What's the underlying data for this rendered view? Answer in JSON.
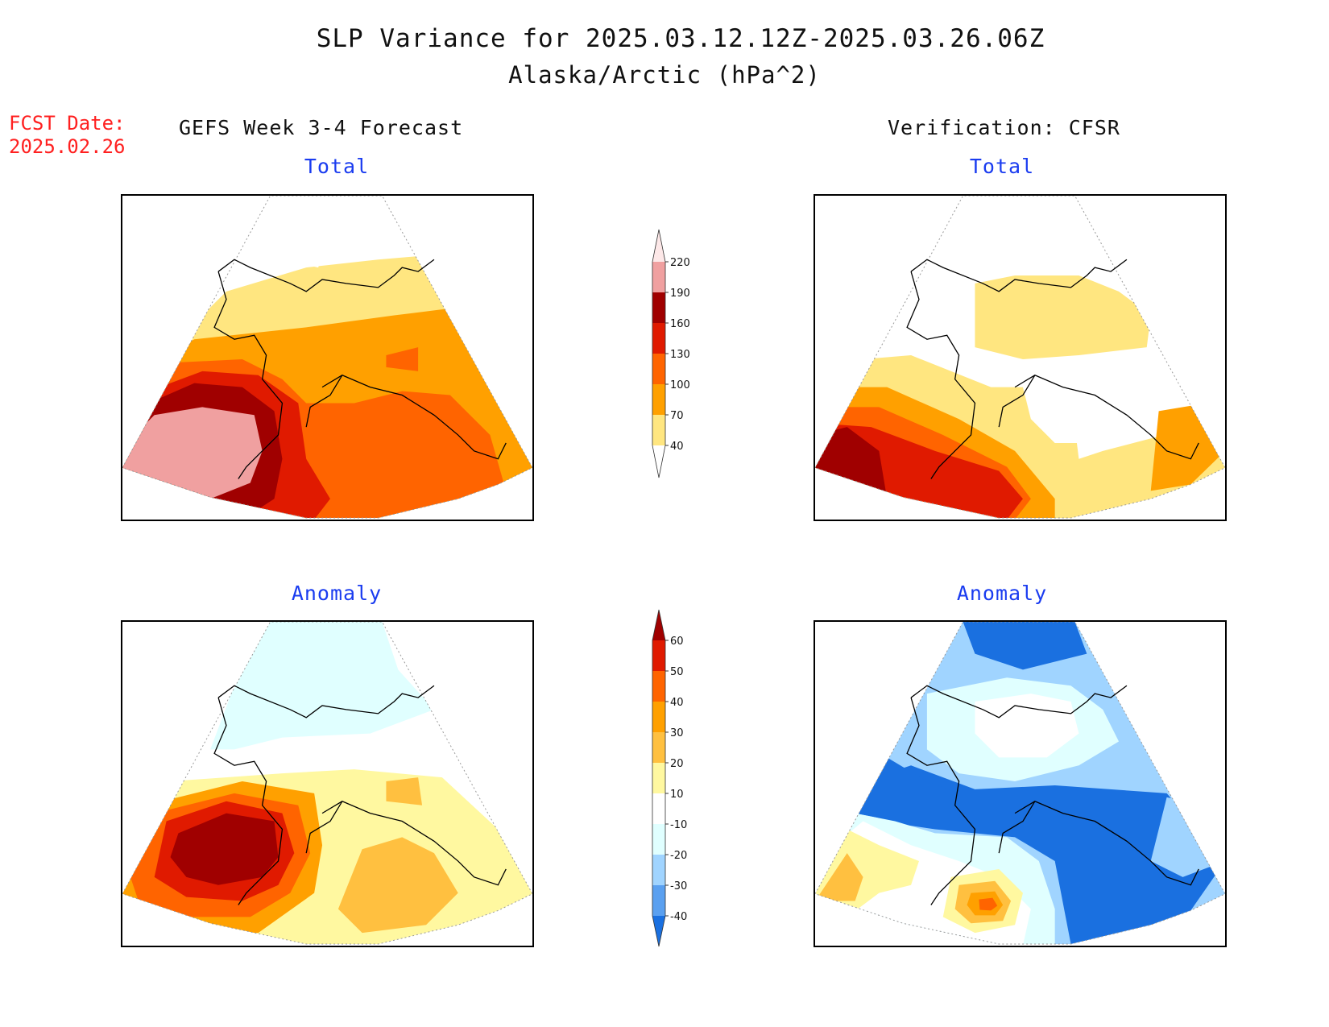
{
  "title": {
    "line1": "SLP Variance for 2025.03.12.12Z-2025.03.26.06Z",
    "line2": "Alaska/Arctic (hPa^2)"
  },
  "forecast": {
    "label": "FCST Date:",
    "date": "2025.02.26"
  },
  "columns": {
    "left_header": "GEFS Week 3-4 Forecast",
    "right_header": "Verification: CFSR"
  },
  "panels": {
    "gefs_total_title": "Total",
    "gefs_anomaly_title": "Anomaly",
    "cfsr_total_title": "Total",
    "cfsr_anomaly_title": "Anomaly"
  },
  "colorbars": {
    "total": {
      "labels": [
        "220",
        "190",
        "160",
        "130",
        "100",
        "70",
        "40"
      ],
      "colors": [
        "#fde8e8",
        "#f0a0a0",
        "#a00000",
        "#e01a00",
        "#ff6400",
        "#ffa000",
        "#ffe680"
      ]
    },
    "anomaly": {
      "labels": [
        "60",
        "50",
        "40",
        "30",
        "20",
        "10",
        "-10",
        "-20",
        "-30",
        "-40"
      ],
      "colors": [
        "#a00000",
        "#e01a00",
        "#ff6400",
        "#ffa000",
        "#ffc040",
        "#fff8a0",
        "#ffffff",
        "#e0ffff",
        "#a0d4ff",
        "#5aa0f0",
        "#1a70e0"
      ]
    }
  }
}
